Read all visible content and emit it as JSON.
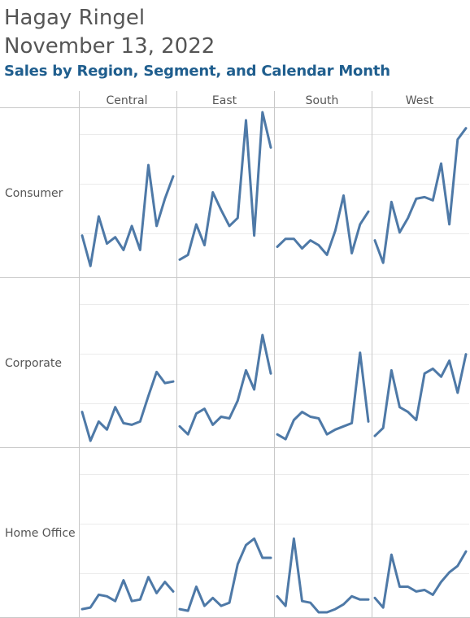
{
  "header": {
    "author": "Hagay Ringel",
    "date": "November 13, 2022",
    "title": "Sales by Region, Segment, and Calendar Month"
  },
  "colors": {
    "line": "#4e79a7",
    "title": "#1f5e8e",
    "grid": "#ebebeb",
    "divider": "#c8c8c8"
  },
  "chart_data": {
    "type": "line",
    "title": "Sales by Region, Segment, and Calendar Month",
    "columns": [
      "Central",
      "East",
      "South",
      "West"
    ],
    "rows": [
      "Consumer",
      "Corporate",
      "Home Office"
    ],
    "x": [
      1,
      2,
      3,
      4,
      5,
      6,
      7,
      8,
      9,
      10,
      11,
      12
    ],
    "ylim": [
      0,
      100
    ],
    "grid": true,
    "panels": [
      {
        "segment": "Consumer",
        "region": "Central",
        "values": [
          24,
          5,
          36,
          19,
          23,
          15,
          30,
          15,
          68,
          30,
          47,
          61
        ]
      },
      {
        "segment": "Consumer",
        "region": "East",
        "values": [
          9,
          12,
          31,
          18,
          51,
          40,
          30,
          35,
          96,
          24,
          101,
          79
        ]
      },
      {
        "segment": "Consumer",
        "region": "South",
        "values": [
          17,
          22,
          22,
          16,
          21,
          18,
          12,
          27,
          49,
          13,
          31,
          39
        ]
      },
      {
        "segment": "Consumer",
        "region": "West",
        "values": [
          21,
          7,
          45,
          26,
          35,
          47,
          48,
          46,
          69,
          31,
          84,
          91
        ]
      },
      {
        "segment": "Corporate",
        "region": "Central",
        "values": [
          20,
          2,
          14,
          9,
          23,
          13,
          12,
          14,
          30,
          45,
          38,
          39
        ]
      },
      {
        "segment": "Corporate",
        "region": "East",
        "values": [
          11,
          6,
          19,
          22,
          12,
          17,
          16,
          27,
          46,
          34,
          68,
          44
        ]
      },
      {
        "segment": "Corporate",
        "region": "South",
        "values": [
          6,
          3,
          15,
          20,
          17,
          16,
          6,
          9,
          11,
          13,
          57,
          14
        ]
      },
      {
        "segment": "Corporate",
        "region": "West",
        "values": [
          5,
          10,
          46,
          23,
          20,
          15,
          44,
          47,
          42,
          52,
          32,
          56
        ]
      },
      {
        "segment": "Home Office",
        "region": "Central",
        "values": [
          3,
          4,
          12,
          11,
          8,
          21,
          8,
          9,
          23,
          13,
          20,
          14
        ]
      },
      {
        "segment": "Home Office",
        "region": "East",
        "values": [
          3,
          2,
          17,
          5,
          10,
          5,
          7,
          31,
          43,
          47,
          35,
          35
        ]
      },
      {
        "segment": "Home Office",
        "region": "South",
        "values": [
          11,
          5,
          47,
          8,
          7,
          1,
          1,
          3,
          6,
          11,
          9,
          9
        ]
      },
      {
        "segment": "Home Office",
        "region": "West",
        "values": [
          10,
          4,
          37,
          17,
          17,
          14,
          15,
          12,
          20,
          26,
          30,
          39
        ]
      }
    ]
  }
}
